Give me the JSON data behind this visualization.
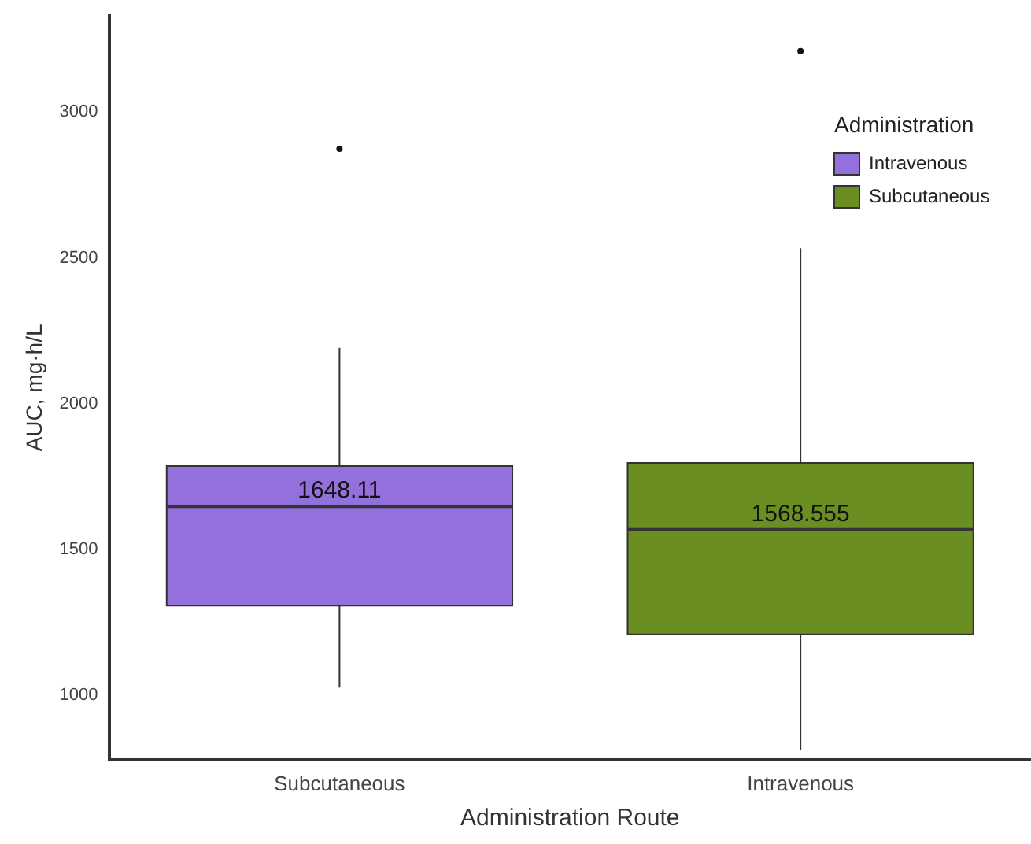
{
  "chart_data": {
    "type": "box",
    "xlabel": "Administration Route",
    "ylabel": "AUC, mg·h/L",
    "legend_title": "Administration",
    "legend": "top right",
    "grid": false,
    "categories": [
      "Subcutaneous",
      "Intravenous"
    ],
    "ylim": [
      780,
      3330
    ],
    "yticks": [
      1000,
      1500,
      2000,
      2500,
      3000
    ],
    "series": [
      {
        "name": "Intravenous",
        "color": "#9370db",
        "boxes": [
          {
            "low": 1027,
            "q1": 1308,
            "median": 1648.11,
            "q3": 1786,
            "high": 2192,
            "outliers": [
              2874
            ]
          },
          null
        ],
        "value_labels": [
          "1648.11",
          null
        ]
      },
      {
        "name": "Subcutaneous",
        "color": "#6b8e23",
        "boxes": [
          null,
          {
            "low": 813,
            "q1": 1209,
            "median": 1568.555,
            "q3": 1797,
            "high": 2533,
            "outliers": [
              3209
            ]
          }
        ],
        "value_labels": [
          null,
          "1568.555"
        ]
      }
    ]
  }
}
